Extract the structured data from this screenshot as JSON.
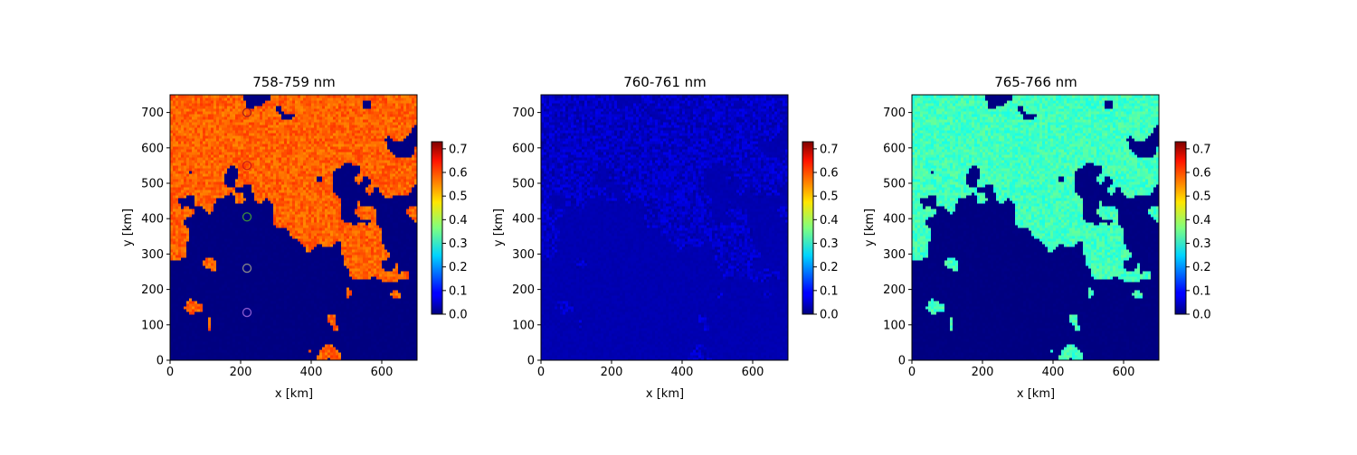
{
  "chart_data": [
    {
      "type": "heatmap",
      "title": "758-759 nm",
      "xlabel": "x [km]",
      "ylabel": "y [km]",
      "xlim": [
        0,
        700
      ],
      "ylim": [
        0,
        750
      ],
      "xticks": [
        "0",
        "200",
        "400",
        "600"
      ],
      "yticks": [
        "0",
        "100",
        "200",
        "300",
        "400",
        "500",
        "600",
        "700"
      ],
      "colormap": "jet",
      "vmin": 0.0,
      "vmax": 0.73,
      "colorbar_ticks": [
        "0.0",
        "0.1",
        "0.2",
        "0.3",
        "0.4",
        "0.5",
        "0.6",
        "0.7"
      ],
      "cloud_value": 0.57,
      "clear_value": 0.0,
      "markers": [
        {
          "x": 218,
          "y": 700,
          "color": "#aa1c1c"
        },
        {
          "x": 218,
          "y": 550,
          "color": "#d01818"
        },
        {
          "x": 218,
          "y": 405,
          "color": "#3d8f3d"
        },
        {
          "x": 218,
          "y": 260,
          "color": "#888888"
        },
        {
          "x": 218,
          "y": 135,
          "color": "#8a5ad0"
        }
      ]
    },
    {
      "type": "heatmap",
      "title": "760-761 nm",
      "xlabel": "x [km]",
      "ylabel": "y [km]",
      "xlim": [
        0,
        700
      ],
      "ylim": [
        0,
        750
      ],
      "xticks": [
        "0",
        "200",
        "400",
        "600"
      ],
      "yticks": [
        "0",
        "100",
        "200",
        "300",
        "400",
        "500",
        "600",
        "700"
      ],
      "colormap": "jet",
      "vmin": 0.0,
      "vmax": 0.73,
      "colorbar_ticks": [
        "0.0",
        "0.1",
        "0.2",
        "0.3",
        "0.4",
        "0.5",
        "0.6",
        "0.7"
      ],
      "cloud_value": 0.05,
      "clear_value": 0.035
    },
    {
      "type": "heatmap",
      "title": "765-766 nm",
      "xlabel": "x [km]",
      "ylabel": "y [km]",
      "xlim": [
        0,
        700
      ],
      "ylim": [
        0,
        750
      ],
      "xticks": [
        "0",
        "200",
        "400",
        "600"
      ],
      "yticks": [
        "0",
        "100",
        "200",
        "300",
        "400",
        "500",
        "600",
        "700"
      ],
      "colormap": "jet",
      "vmin": 0.0,
      "vmax": 0.73,
      "colorbar_ticks": [
        "0.0",
        "0.1",
        "0.2",
        "0.3",
        "0.4",
        "0.5",
        "0.6",
        "0.7"
      ],
      "cloud_value": 0.32,
      "clear_value": 0.0
    }
  ]
}
